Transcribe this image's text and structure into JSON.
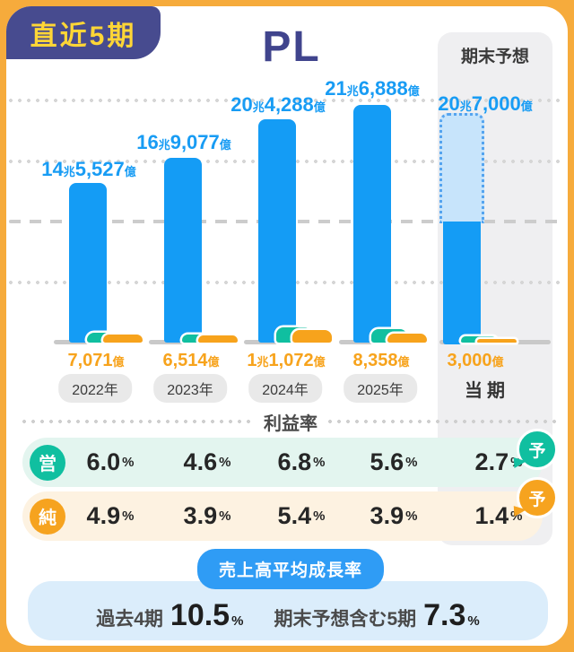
{
  "header": {
    "badge": "直近5期",
    "title": "PL"
  },
  "forecast": {
    "header": "期末予想"
  },
  "colors": {
    "blue_bar": "#149CF5",
    "forecast_fill": "#C7E4FB",
    "forecast_border": "#55A4EF",
    "teal": "#10BFA0",
    "orange": "#F7A31C",
    "navy": "#474B8F",
    "yellow": "#FFD636",
    "growth_pill_blue": "#2F9CF5",
    "growth_box_blue": "#DBEDFB",
    "op_row_bg": "#E3F5EF",
    "net_row_bg": "#FDF2E1",
    "forecast_col_bg": "#EFEFF1"
  },
  "chart_data": {
    "type": "bar",
    "title": "PL",
    "unit": "億円",
    "categories": [
      "2022年",
      "2023年",
      "2024年",
      "2025年",
      "当期"
    ],
    "forecast_category": "当期",
    "forecast_header": "期末予想",
    "ylim": [
      0,
      230000
    ],
    "grid": "dotted horizontal lines",
    "series": [
      {
        "name": "売上高",
        "color": "#149CF5",
        "values": [
          145527,
          169077,
          204288,
          216888,
          207000
        ],
        "labels": [
          "14兆5,527億",
          "16兆9,077億",
          "20兆4,288億",
          "21兆6,888億",
          "20兆7,000億"
        ],
        "label_parts": [
          {
            "a": "14",
            "au": "兆",
            "b": "5,527",
            "bu": "億"
          },
          {
            "a": "16",
            "au": "兆",
            "b": "9,077",
            "bu": "億"
          },
          {
            "a": "20",
            "au": "兆",
            "b": "4,288",
            "bu": "億"
          },
          {
            "a": "21",
            "au": "兆",
            "b": "6,888",
            "bu": "億"
          },
          {
            "a": "20",
            "au": "兆",
            "b": "7,000",
            "bu": "億"
          }
        ]
      },
      {
        "name": "純利益",
        "color": "#F7A31C",
        "values": [
          7071,
          6514,
          11072,
          8358,
          3000
        ],
        "labels": [
          "7,071億",
          "6,514億",
          "1兆1,072億",
          "8,358億",
          "3,000億"
        ],
        "label_parts": [
          {
            "b": "7,071",
            "bu": "億"
          },
          {
            "b": "6,514",
            "bu": "億"
          },
          {
            "a": "1",
            "au": "兆",
            "b": "1,072",
            "bu": "億"
          },
          {
            "b": "8,358",
            "bu": "億"
          },
          {
            "b": "3,000",
            "bu": "億"
          }
        ]
      }
    ]
  },
  "margin_section": {
    "title": "利益率",
    "unit": "%",
    "rows": [
      {
        "badge": "営",
        "values": [
          "6.0",
          "4.6",
          "6.8",
          "5.6",
          "2.7"
        ],
        "forecast_mark": "予"
      },
      {
        "badge": "純",
        "values": [
          "4.9",
          "3.9",
          "5.4",
          "3.9",
          "1.4"
        ],
        "forecast_mark": "予"
      }
    ]
  },
  "growth_section": {
    "badge": "売上高平均成長率",
    "items": [
      {
        "label": "過去4期",
        "value": "10.5",
        "unit": "%"
      },
      {
        "label": "期末予想含む5期",
        "value": "7.3",
        "unit": "%"
      }
    ]
  }
}
